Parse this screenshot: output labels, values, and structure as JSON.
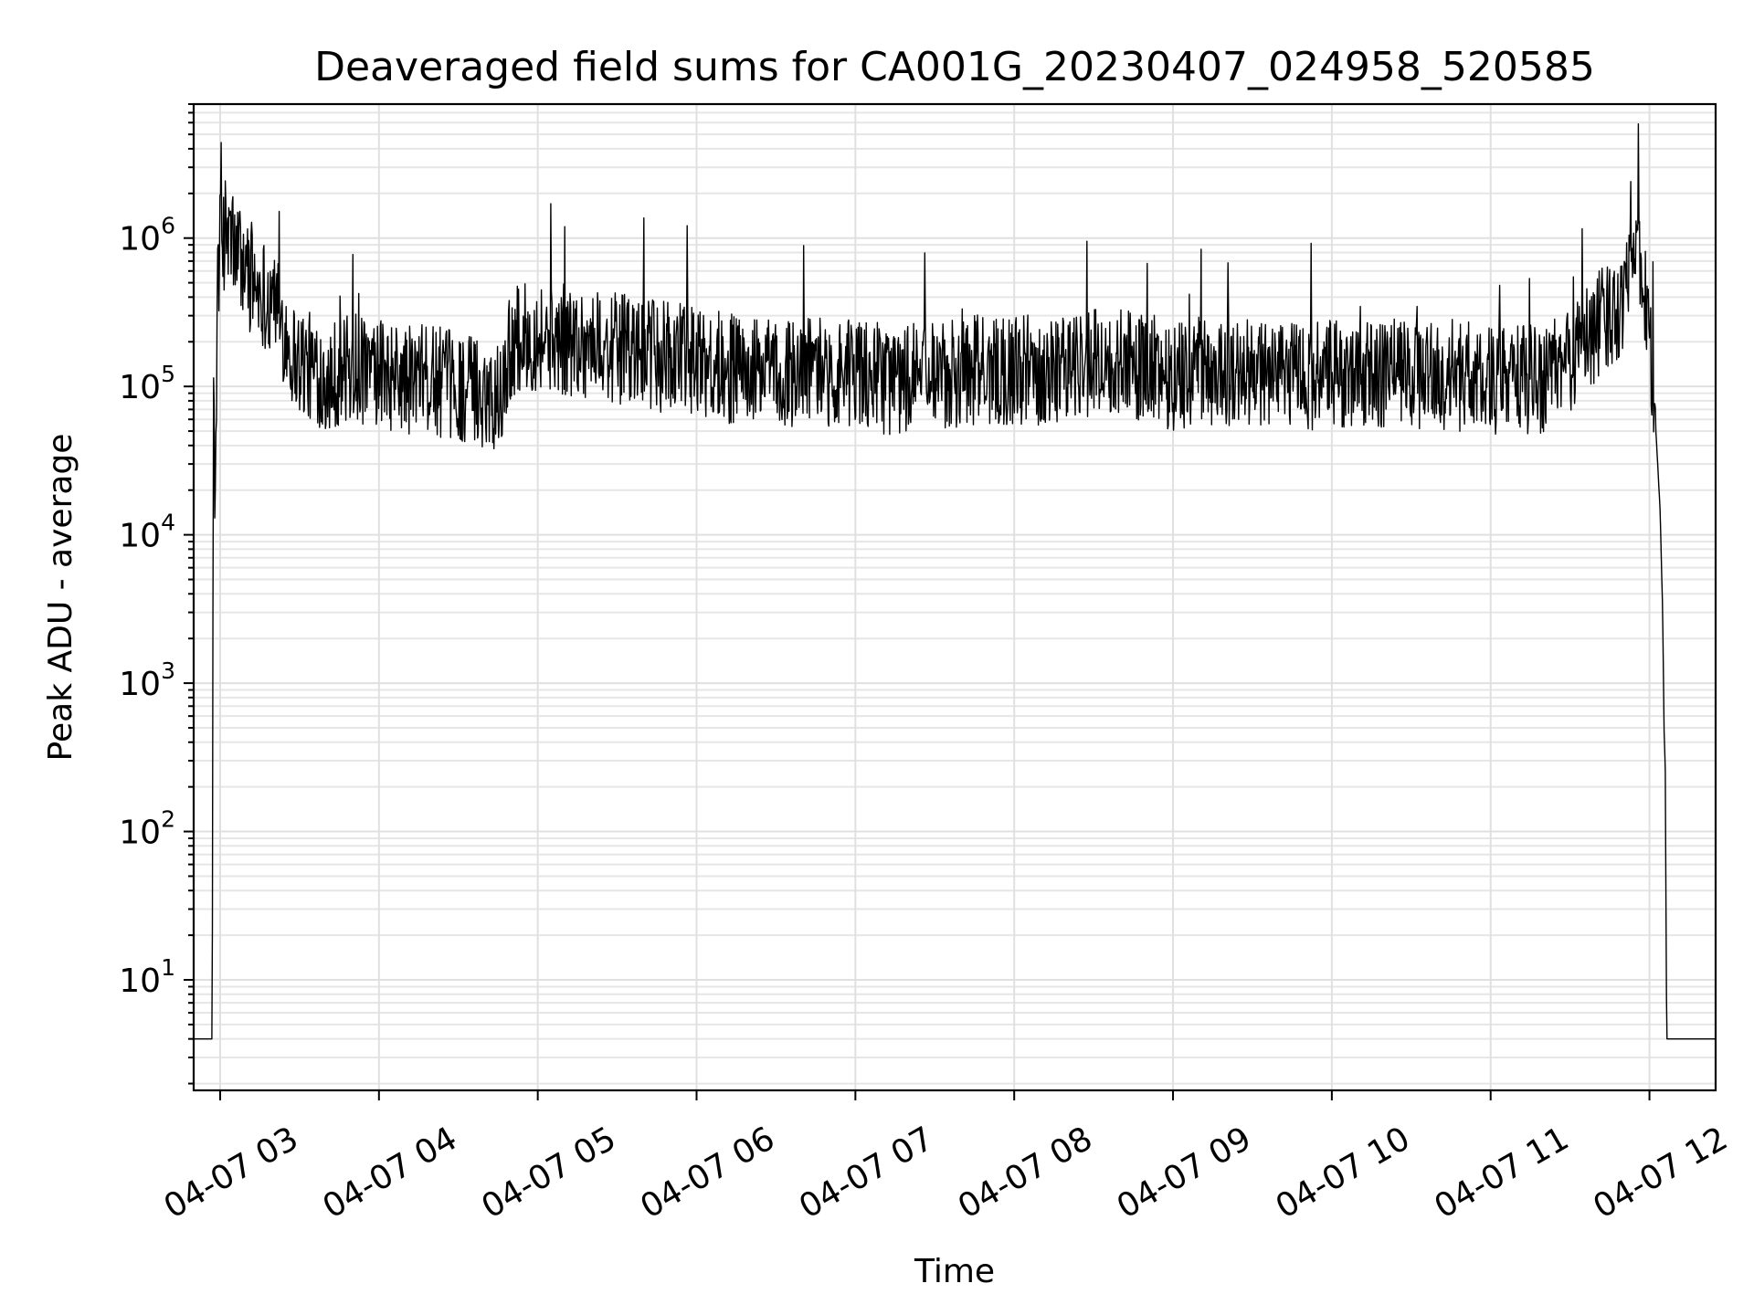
{
  "chart_data": {
    "type": "line",
    "title": "Deaveraged field sums for CA001G_20230407_024958_520585",
    "xlabel": "Time",
    "ylabel": "Peak ADU - average",
    "xscale": "time",
    "yscale": "log",
    "grid": "on (major and minor)",
    "legend": "none",
    "line_color": "#000000",
    "xlim": [
      "2023-04-07T02:50:00",
      "2023-04-07T12:25:00"
    ],
    "ylim": [
      1.8,
      8000000
    ],
    "xticks": [
      {
        "t": "2023-04-07T03:00:00",
        "label": "04-07 03"
      },
      {
        "t": "2023-04-07T04:00:00",
        "label": "04-07 04"
      },
      {
        "t": "2023-04-07T05:00:00",
        "label": "04-07 05"
      },
      {
        "t": "2023-04-07T06:00:00",
        "label": "04-07 06"
      },
      {
        "t": "2023-04-07T07:00:00",
        "label": "04-07 07"
      },
      {
        "t": "2023-04-07T08:00:00",
        "label": "04-07 08"
      },
      {
        "t": "2023-04-07T09:00:00",
        "label": "04-07 09"
      },
      {
        "t": "2023-04-07T10:00:00",
        "label": "04-07 10"
      },
      {
        "t": "2023-04-07T11:00:00",
        "label": "04-07 11"
      },
      {
        "t": "2023-04-07T12:00:00",
        "label": "04-07 12"
      }
    ],
    "yticks": [
      {
        "value": 10,
        "base": "10",
        "exp": "1"
      },
      {
        "value": 100,
        "base": "10",
        "exp": "2"
      },
      {
        "value": 1000,
        "base": "10",
        "exp": "3"
      },
      {
        "value": 10000,
        "base": "10",
        "exp": "4"
      },
      {
        "value": 100000,
        "base": "10",
        "exp": "5"
      },
      {
        "value": 1000000,
        "base": "10",
        "exp": "6"
      }
    ],
    "series": [
      {
        "x": [
          "2023-04-07T02:50:00",
          "2023-04-07T02:57:00",
          "2023-04-07T02:57:30",
          "2023-04-07T02:58:00",
          "2023-04-07T02:59:00",
          "2023-04-07T03:00:00",
          "2023-04-07T03:02:00",
          "2023-04-07T03:05:00",
          "2023-04-07T03:08:00",
          "2023-04-07T03:12:00",
          "2023-04-07T03:16:00",
          "2023-04-07T03:20:00",
          "2023-04-07T03:24:00",
          "2023-04-07T03:27:00",
          "2023-04-07T03:30:00",
          "2023-04-07T03:35:00",
          "2023-04-07T03:40:00",
          "2023-04-07T03:50:00",
          "2023-04-07T04:00:00",
          "2023-04-07T04:10:00",
          "2023-04-07T04:20:00",
          "2023-04-07T04:30:00",
          "2023-04-07T04:40:00",
          "2023-04-07T04:46:00",
          "2023-04-07T04:50:00",
          "2023-04-07T05:00:00",
          "2023-04-07T05:15:00",
          "2023-04-07T05:30:00",
          "2023-04-07T05:45:00",
          "2023-04-07T06:00:00",
          "2023-04-07T06:15:00",
          "2023-04-07T06:30:00",
          "2023-04-07T06:45:00",
          "2023-04-07T07:00:00",
          "2023-04-07T07:15:00",
          "2023-04-07T07:30:00",
          "2023-04-07T07:45:00",
          "2023-04-07T08:00:00",
          "2023-04-07T08:15:00",
          "2023-04-07T08:30:00",
          "2023-04-07T08:45:00",
          "2023-04-07T09:00:00",
          "2023-04-07T09:15:00",
          "2023-04-07T09:30:00",
          "2023-04-07T09:45:00",
          "2023-04-07T10:00:00",
          "2023-04-07T10:15:00",
          "2023-04-07T10:30:00",
          "2023-04-07T10:45:00",
          "2023-04-07T11:00:00",
          "2023-04-07T11:10:00",
          "2023-04-07T11:20:00",
          "2023-04-07T11:30:00",
          "2023-04-07T11:40:00",
          "2023-04-07T11:45:00",
          "2023-04-07T11:50:00",
          "2023-04-07T11:52:00",
          "2023-04-07T11:53:00",
          "2023-04-07T11:55:00",
          "2023-04-07T11:58:00",
          "2023-04-07T12:00:00",
          "2023-04-07T12:02:00",
          "2023-04-07T12:04:00",
          "2023-04-07T12:05:00",
          "2023-04-07T12:05:30",
          "2023-04-07T12:06:00",
          "2023-04-07T12:06:30",
          "2023-04-07T12:25:00"
        ],
        "y": [
          4,
          4,
          300000,
          10000,
          500000,
          900000,
          1100000,
          900000,
          700000,
          500000,
          450000,
          350000,
          250000,
          170000,
          150000,
          130000,
          120000,
          130000,
          120000,
          110000,
          110000,
          100000,
          90000,
          90000,
          200000,
          220000,
          200000,
          180000,
          160000,
          150000,
          130000,
          120000,
          130000,
          120000,
          110000,
          120000,
          130000,
          130000,
          130000,
          150000,
          140000,
          120000,
          130000,
          120000,
          120000,
          120000,
          120000,
          120000,
          120000,
          110000,
          110000,
          110000,
          150000,
          250000,
          300000,
          400000,
          700000,
          1500000,
          800000,
          500000,
          200000,
          70000,
          15000,
          3000,
          500,
          250,
          4,
          4
        ]
      }
    ]
  }
}
